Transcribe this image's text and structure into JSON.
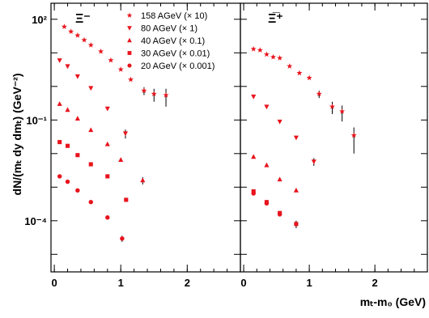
{
  "chart_data": {
    "type": "scatter",
    "ylabel": "dN/(mₜ dy dmₜ) (GeV⁻²)",
    "xlabel": "mₜ-m₀ (GeV)",
    "yscale": "log",
    "ylim": [
      3e-06,
      300
    ],
    "y_ticks": [
      {
        "value": 100,
        "label": "10²"
      },
      {
        "value": 0.1,
        "label": "10⁻¹"
      },
      {
        "value": 0.0001,
        "label": "10⁻⁴"
      }
    ],
    "legend": {
      "placement": "top",
      "entries": [
        {
          "marker": "star",
          "label": "158 AGeV (× 10)"
        },
        {
          "marker": "triangle-down",
          "label": "80 AGeV (× 1)"
        },
        {
          "marker": "triangle-up",
          "label": "40 AGeV (× 0.1)"
        },
        {
          "marker": "square",
          "label": "30 AGeV (× 0.01)"
        },
        {
          "marker": "circle",
          "label": "20 AGeV (× 0.001)"
        }
      ]
    },
    "color": "#e8141d",
    "error_color": "#000000",
    "panels": [
      {
        "label": "Ξ⁻",
        "xlim": [
          -0.05,
          2.8
        ],
        "x_ticks": [
          {
            "value": 0,
            "label": "0"
          },
          {
            "value": 1,
            "label": "1"
          },
          {
            "value": 2,
            "label": "2"
          }
        ],
        "series": [
          {
            "marker": "star",
            "points": [
              {
                "x": 0.15,
                "y": 60
              },
              {
                "x": 0.25,
                "y": 43
              },
              {
                "x": 0.35,
                "y": 33
              },
              {
                "x": 0.45,
                "y": 24
              },
              {
                "x": 0.55,
                "y": 17
              },
              {
                "x": 0.7,
                "y": 11
              },
              {
                "x": 0.85,
                "y": 6
              },
              {
                "x": 1.0,
                "y": 3.2
              },
              {
                "x": 1.15,
                "y": 1.6
              },
              {
                "x": 1.35,
                "y": 0.75,
                "err": 0.2
              },
              {
                "x": 1.5,
                "y": 0.6,
                "err": 0.25
              },
              {
                "x": 1.68,
                "y": 0.55,
                "err": 0.3
              }
            ]
          },
          {
            "marker": "triangle-down",
            "points": [
              {
                "x": 0.08,
                "y": 6
              },
              {
                "x": 0.2,
                "y": 4
              },
              {
                "x": 0.35,
                "y": 2
              },
              {
                "x": 0.55,
                "y": 0.9
              },
              {
                "x": 0.8,
                "y": 0.22
              },
              {
                "x": 1.07,
                "y": 0.04,
                "err": 0.012
              }
            ]
          },
          {
            "marker": "triangle-up",
            "points": [
              {
                "x": 0.08,
                "y": 0.3
              },
              {
                "x": 0.2,
                "y": 0.2
              },
              {
                "x": 0.35,
                "y": 0.11
              },
              {
                "x": 0.55,
                "y": 0.05
              },
              {
                "x": 0.8,
                "y": 0.019
              },
              {
                "x": 1.0,
                "y": 0.0065
              },
              {
                "x": 1.33,
                "y": 0.0016,
                "err": 0.0004
              }
            ]
          },
          {
            "marker": "square",
            "points": [
              {
                "x": 0.08,
                "y": 0.022
              },
              {
                "x": 0.2,
                "y": 0.017
              },
              {
                "x": 0.35,
                "y": 0.009
              },
              {
                "x": 0.55,
                "y": 0.0048
              },
              {
                "x": 0.8,
                "y": 0.0021
              },
              {
                "x": 1.08,
                "y": 0.00042
              }
            ]
          },
          {
            "marker": "circle",
            "points": [
              {
                "x": 0.08,
                "y": 0.0021
              },
              {
                "x": 0.2,
                "y": 0.00145
              },
              {
                "x": 0.35,
                "y": 0.0008
              },
              {
                "x": 0.55,
                "y": 0.00036
              },
              {
                "x": 0.8,
                "y": 0.000125
              },
              {
                "x": 1.02,
                "y": 2.95e-05,
                "err": 6e-06
              }
            ]
          }
        ]
      },
      {
        "label": "Ξ̅⁺",
        "xlim": [
          -0.05,
          2.8
        ],
        "x_ticks": [
          {
            "value": 0,
            "label": "0"
          },
          {
            "value": 1,
            "label": "1"
          },
          {
            "value": 2,
            "label": "2"
          }
        ],
        "series": [
          {
            "marker": "star",
            "points": [
              {
                "x": 0.15,
                "y": 13
              },
              {
                "x": 0.25,
                "y": 12
              },
              {
                "x": 0.35,
                "y": 9
              },
              {
                "x": 0.45,
                "y": 7.5
              },
              {
                "x": 0.55,
                "y": 7
              },
              {
                "x": 0.7,
                "y": 4
              },
              {
                "x": 0.85,
                "y": 2.5
              },
              {
                "x": 1.0,
                "y": 1.8
              },
              {
                "x": 1.15,
                "y": 0.6,
                "err": 0.15
              },
              {
                "x": 1.35,
                "y": 0.25,
                "err": 0.1
              },
              {
                "x": 1.5,
                "y": 0.18,
                "err": 0.09
              },
              {
                "x": 1.68,
                "y": 0.035,
                "err": 0.025
              }
            ]
          },
          {
            "marker": "triangle-down",
            "points": [
              {
                "x": 0.15,
                "y": 0.5
              },
              {
                "x": 0.35,
                "y": 0.25
              },
              {
                "x": 0.55,
                "y": 0.09
              },
              {
                "x": 0.8,
                "y": 0.03
              },
              {
                "x": 1.07,
                "y": 0.0058,
                "err": 0.0015
              }
            ]
          },
          {
            "marker": "triangle-up",
            "points": [
              {
                "x": 0.15,
                "y": 0.008
              },
              {
                "x": 0.35,
                "y": 0.0045
              },
              {
                "x": 0.55,
                "y": 0.0017
              },
              {
                "x": 0.8,
                "y": 0.0008
              }
            ]
          },
          {
            "marker": "square",
            "points": [
              {
                "x": 0.15,
                "y": 0.00075
              },
              {
                "x": 0.35,
                "y": 0.00036
              },
              {
                "x": 0.55,
                "y": 0.00017
              },
              {
                "x": 0.8,
                "y": 8e-05,
                "err": 2e-05
              }
            ]
          },
          {
            "marker": "circle",
            "points": [
              {
                "x": 0.15,
                "y": 0.00065
              },
              {
                "x": 0.35,
                "y": 0.00033
              },
              {
                "x": 0.55,
                "y": 0.000155
              }
            ]
          }
        ]
      }
    ]
  }
}
